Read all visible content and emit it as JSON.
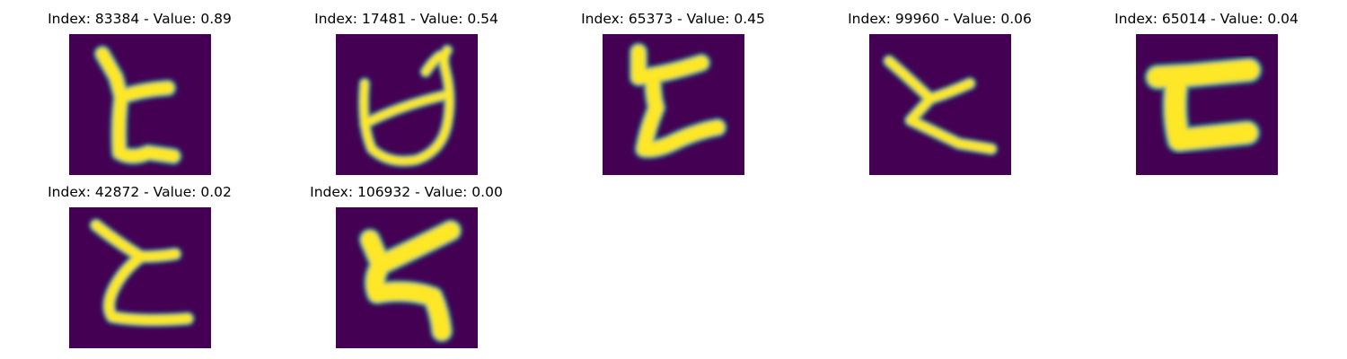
{
  "figure": {
    "background": "#ffffff",
    "colormap": [
      "#440154",
      "#3b528b",
      "#21918c",
      "#5ec962",
      "#fde725"
    ]
  },
  "tiles": [
    {
      "title": "Index: 83384 - Value: 0.89",
      "glyph": "curved-stroke-digit"
    },
    {
      "title": "Index: 17481 - Value: 0.54",
      "glyph": "looped-stroke-digit"
    },
    {
      "title": "Index: 65373 - Value: 0.45",
      "glyph": "curved-stroke-digit"
    },
    {
      "title": "Index: 99960 - Value: 0.06",
      "glyph": "curved-stroke-digit"
    },
    {
      "title": "Index: 65014 - Value: 0.04",
      "glyph": "bracket-stroke-digit"
    },
    {
      "title": "Index: 42872 - Value: 0.02",
      "glyph": "curved-stroke-digit"
    },
    {
      "title": "Index: 106932 - Value: 0.00",
      "glyph": "zigzag-stroke-digit"
    }
  ]
}
